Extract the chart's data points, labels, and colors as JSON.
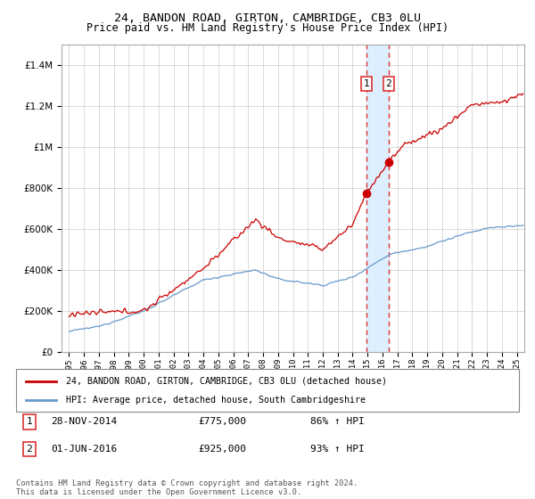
{
  "title": "24, BANDON ROAD, GIRTON, CAMBRIDGE, CB3 0LU",
  "subtitle": "Price paid vs. HM Land Registry's House Price Index (HPI)",
  "legend_line1": "24, BANDON ROAD, GIRTON, CAMBRIDGE, CB3 0LU (detached house)",
  "legend_line2": "HPI: Average price, detached house, South Cambridgeshire",
  "annotation1_label": "1",
  "annotation1_date": "28-NOV-2014",
  "annotation1_price": "£775,000",
  "annotation1_hpi": "86% ↑ HPI",
  "annotation2_label": "2",
  "annotation2_date": "01-JUN-2016",
  "annotation2_price": "£925,000",
  "annotation2_hpi": "93% ↑ HPI",
  "footer": "Contains HM Land Registry data © Crown copyright and database right 2024.\nThis data is licensed under the Open Government Licence v3.0.",
  "sale1_x": 2014.91,
  "sale1_y": 775000,
  "sale2_x": 2016.42,
  "sale2_y": 925000,
  "red_color": "#cc0000",
  "blue_color": "#6699cc",
  "highlight_color": "#ddeeff",
  "vline_color": "#dd3333",
  "grid_color": "#cccccc",
  "background_color": "#ffffff",
  "ylim": [
    0,
    1500000
  ],
  "xlim": [
    1994.5,
    2025.5
  ]
}
